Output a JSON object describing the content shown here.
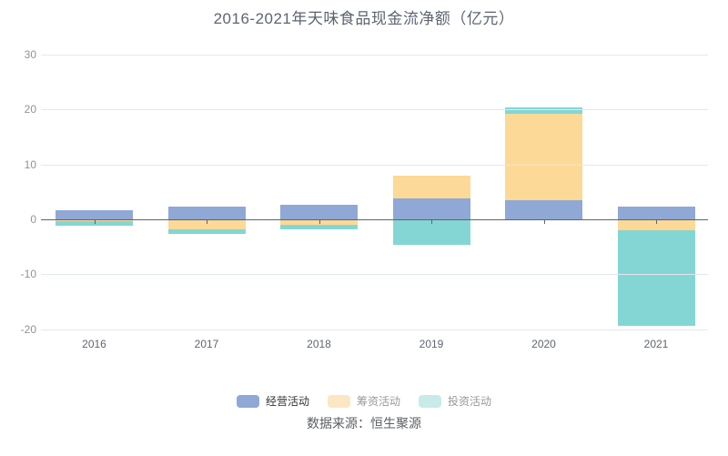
{
  "title": "2016-2021年天味食品现金流净额（亿元）",
  "source": "数据来源：恒生聚源",
  "legend": [
    {
      "label": "经营活动",
      "swatch": "#8fa8d5",
      "text_color": "#333333"
    },
    {
      "label": "筹资活动",
      "swatch": "#fbe7c4",
      "text_color": "#999999"
    },
    {
      "label": "投资活动",
      "swatch": "#c8ebe9",
      "text_color": "#999999"
    }
  ],
  "colors": {
    "operating": "#8fa8d5",
    "financing": "#fcd997",
    "investing": "#84d6d4",
    "grid": "#e2e7f1",
    "axis": "#5f646c"
  },
  "chart_data": {
    "type": "bar",
    "stacked": true,
    "title": "2016-2021年天味食品现金流净额（亿元）",
    "xlabel": "",
    "ylabel": "",
    "categories": [
      "2016",
      "2017",
      "2018",
      "2019",
      "2020",
      "2021"
    ],
    "series": [
      {
        "name": "经营活动",
        "color": "#8fa8d5",
        "values": [
          1.65,
          2.25,
          2.65,
          3.78,
          3.53,
          2.4
        ],
        "labels": [
          "1.65",
          "2.25",
          "2.65",
          "3.78",
          "3.53",
          "2.40"
        ]
      },
      {
        "name": "筹资活动",
        "color": "#fcd997",
        "values": [
          -0.35,
          -1.8,
          -1.05,
          4.15,
          15.67,
          -1.95
        ]
      },
      {
        "name": "投资活动",
        "color": "#84d6d4",
        "values": [
          -0.85,
          -0.85,
          -0.72,
          -4.65,
          1.25,
          -17.5
        ]
      }
    ],
    "yticks": [
      30,
      20,
      10,
      0,
      -10,
      -20
    ],
    "ylim": [
      -25,
      33
    ],
    "grid": true,
    "legend_position": "bottom"
  }
}
